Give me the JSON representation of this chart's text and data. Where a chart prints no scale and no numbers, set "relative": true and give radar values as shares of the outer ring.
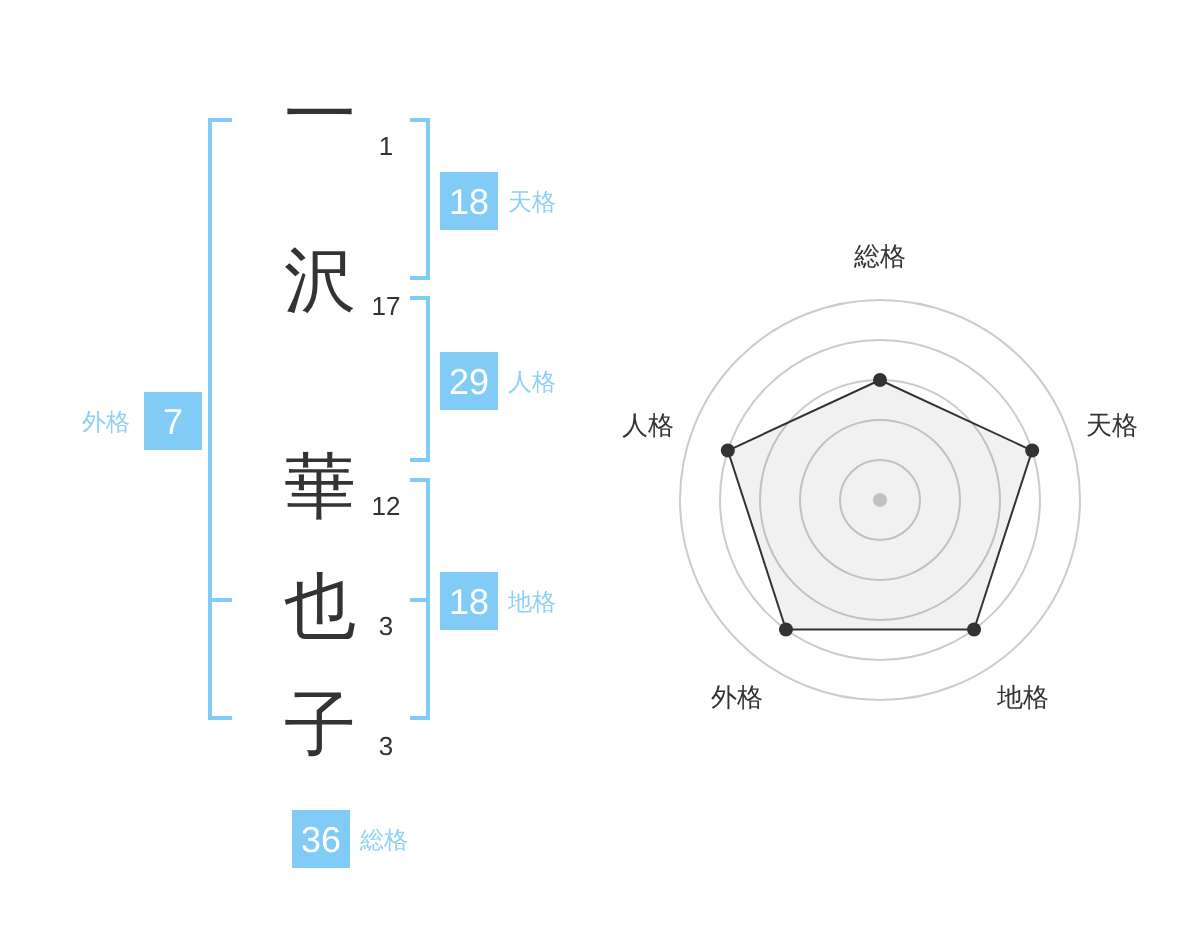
{
  "chart_data": [
    {
      "type": "other",
      "categories": [
        "一",
        "沢",
        "華",
        "也",
        "子"
      ],
      "values": [
        1,
        17,
        12,
        3,
        3
      ],
      "data_labels": true,
      "annotations": [
        "18",
        "天格",
        "29",
        "人格",
        "18",
        "地格",
        "7",
        "外格",
        "36",
        "総格"
      ]
    },
    {
      "type": "radar",
      "categories": [
        "総格",
        "天格",
        "地格",
        "外格",
        "人格"
      ],
      "relative": true,
      "grid": true,
      "marker": "circle",
      "series": [
        {
          "color": "#333333",
          "values": [
            0.6,
            0.8,
            0.8,
            0.8,
            0.8
          ]
        }
      ]
    }
  ]
}
